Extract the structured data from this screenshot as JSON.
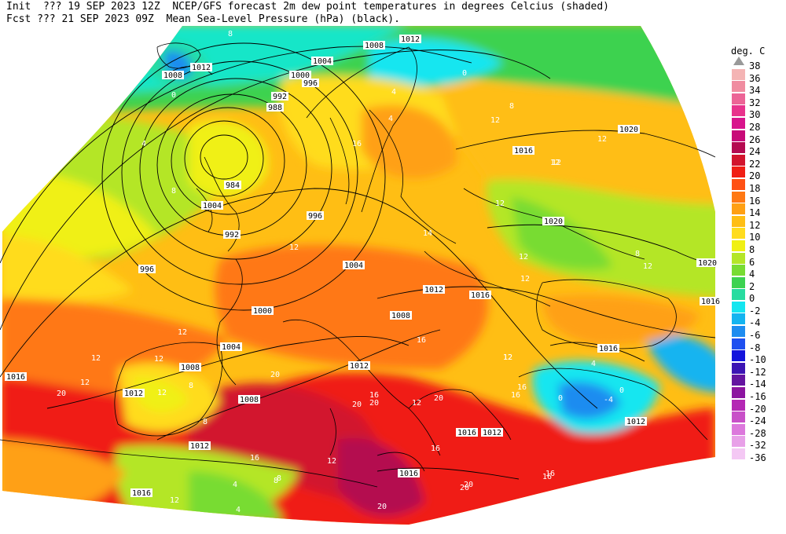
{
  "header": {
    "line1": "Init  ??? 19 SEP 2023 12Z  NCEP/GFS forecast 2m dew point temperatures in degrees Celcius (shaded)",
    "line2": "Fcst ??? 21 SEP 2023 09Z  Mean Sea-Level Pressure (hPa) (black)."
  },
  "legend": {
    "title": "deg. C",
    "entries": [
      {
        "label": "38",
        "color": "#999999"
      },
      {
        "label": "36",
        "color": "#f4b4b4"
      },
      {
        "label": "34",
        "color": "#f08ca0"
      },
      {
        "label": "32",
        "color": "#ec6496"
      },
      {
        "label": "30",
        "color": "#e8328c"
      },
      {
        "label": "28",
        "color": "#d8148c"
      },
      {
        "label": "26",
        "color": "#c80a78"
      },
      {
        "label": "24",
        "color": "#b40a50"
      },
      {
        "label": "22",
        "color": "#d2142d"
      },
      {
        "label": "20",
        "color": "#f01e14"
      },
      {
        "label": "18",
        "color": "#ff5014"
      },
      {
        "label": "16",
        "color": "#ff7814"
      },
      {
        "label": "14",
        "color": "#ffa014"
      },
      {
        "label": "12",
        "color": "#ffbe14"
      },
      {
        "label": "10",
        "color": "#ffdc1e"
      },
      {
        "label": "8",
        "color": "#f0f014"
      },
      {
        "label": "6",
        "color": "#b4e628"
      },
      {
        "label": "4",
        "color": "#78dc32"
      },
      {
        "label": "2",
        "color": "#3cd250"
      },
      {
        "label": "0",
        "color": "#28dca0"
      },
      {
        "label": "-2",
        "color": "#14e6f0"
      },
      {
        "label": "-4",
        "color": "#14b4f0"
      },
      {
        "label": "-6",
        "color": "#1e8cf0"
      },
      {
        "label": "-8",
        "color": "#1e50f0"
      },
      {
        "label": "-10",
        "color": "#1414dc"
      },
      {
        "label": "-12",
        "color": "#3c14b4"
      },
      {
        "label": "-14",
        "color": "#6414a0"
      },
      {
        "label": "-16",
        "color": "#8c14a0"
      },
      {
        "label": "-20",
        "color": "#b428b4"
      },
      {
        "label": "-24",
        "color": "#c850c8"
      },
      {
        "label": "-28",
        "color": "#dc78dc"
      },
      {
        "label": "-32",
        "color": "#e8a0e8"
      },
      {
        "label": "-36",
        "color": "#f4c8f4"
      }
    ]
  },
  "isobar_labels": [
    "1008",
    "1012",
    "1012",
    "1008",
    "1004",
    "1000",
    "996",
    "992",
    "988",
    "984",
    "1004",
    "996",
    "992",
    "996",
    "1004",
    "1000",
    "1004",
    "1008",
    "1012",
    "1012",
    "1016",
    "1016",
    "1020",
    "1020",
    "1020",
    "1016",
    "1008",
    "1012",
    "1012",
    "1016",
    "1016",
    "1008",
    "1012",
    "1016",
    "1012",
    "1016",
    "1016"
  ],
  "dewpoint_labels": [
    "0",
    "4",
    "8",
    "8",
    "12",
    "12",
    "12",
    "12",
    "14",
    "16",
    "12",
    "16",
    "12",
    "12",
    "12",
    "20",
    "16",
    "20",
    "16",
    "20",
    "20",
    "20",
    "20",
    "20",
    "16",
    "16",
    "16",
    "12",
    "12",
    "8",
    "8",
    "4",
    "0",
    "4",
    "4",
    "8",
    "12",
    "12",
    "12",
    "12",
    "4",
    "8",
    "12",
    "0",
    "12",
    "-4",
    "0",
    "8",
    "4",
    "8",
    "12",
    "12",
    "16",
    "20",
    "16",
    "20",
    "12"
  ]
}
